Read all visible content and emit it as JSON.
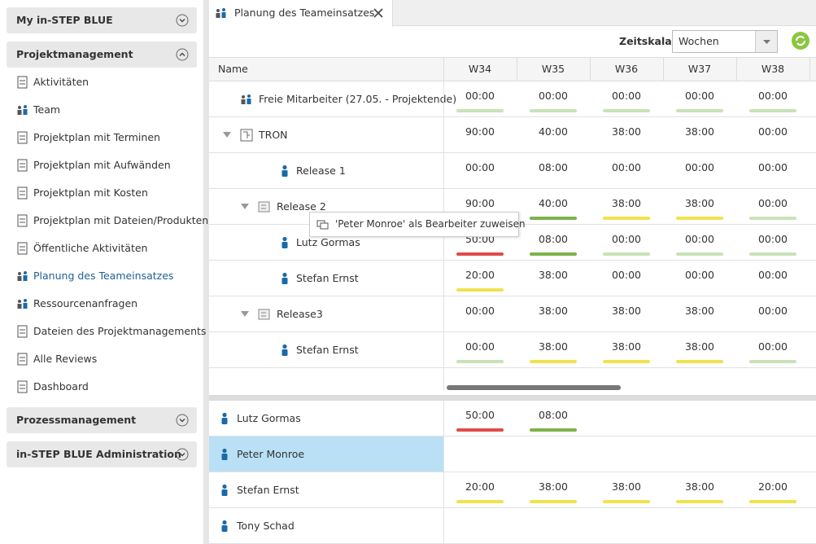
{
  "sidebar": {
    "sections": [
      {
        "title": "My in-STEP BLUE",
        "items": []
      },
      {
        "title": "Projektmanagement",
        "items": [
          "Aktivitäten",
          "Team",
          "Projektplan mit Terminen",
          "Projektplan mit Aufwänden",
          "Projektplan mit Kosten",
          "Projektplan mit Dateien/Produkten",
          "Öffentliche Aktivitäten",
          "Planung des Teameinsatzes",
          "Ressourcenanfragen",
          "Dateien des Projektmanagements",
          "Alle Reviews",
          "Dashboard"
        ]
      },
      {
        "title": "Prozessmanagement",
        "items": []
      },
      {
        "title": "in-STEP BLUE Administration",
        "items": []
      }
    ]
  },
  "tab": {
    "title": "Planung des Teameinsatzes"
  },
  "toolbar": {
    "label": "Zeitskala",
    "select": "Wochen"
  },
  "plan": {
    "columns": {
      "name": "Name",
      "weeks": [
        "W34",
        "W35",
        "W36",
        "W37",
        "W38"
      ]
    },
    "rows": [
      {
        "name": "Freie Mitarbeiter (27.05. - Projektende)",
        "cells": [
          {
            "text": "00:00",
            "bar": "#c8e2b6"
          },
          {
            "text": "00:00",
            "bar": "#c8e2b6"
          },
          {
            "text": "00:00",
            "bar": "#c8e2b6"
          },
          {
            "text": "00:00",
            "bar": "#c8e2b6"
          },
          {
            "text": "00:00",
            "bar": "#c8e2b6"
          }
        ],
        "children": []
      },
      {
        "name": "TRON",
        "cells": [
          {
            "text": "90:00"
          },
          {
            "text": "40:00"
          },
          {
            "text": "38:00"
          },
          {
            "text": "38:00"
          },
          {
            "text": "00:00"
          }
        ],
        "children": [
          {
            "name": "Release 1",
            "cells": [
              {
                "text": "00:00"
              },
              {
                "text": "08:00"
              },
              {
                "text": "00:00"
              },
              {
                "text": "00:00"
              },
              {
                "text": "00:00"
              }
            ],
            "children": []
          },
          {
            "name": "Release 2",
            "cells": [
              {
                "text": "90:00",
                "bar": "#f0e24e"
              },
              {
                "text": "40:00",
                "bar": "#7db24a"
              },
              {
                "text": "38:00",
                "bar": "#f0e24e"
              },
              {
                "text": "38:00",
                "bar": "#f0e24e"
              },
              {
                "text": "00:00",
                "bar": "#c8e2b6"
              }
            ],
            "children": [
              {
                "name": "Lutz Gormas",
                "cells": [
                  {
                    "text": "50:00",
                    "bar": "#e04b4b"
                  },
                  {
                    "text": "08:00",
                    "bar": "#7db24a"
                  },
                  {
                    "text": "00:00",
                    "bar": "#c8e2b6"
                  },
                  {
                    "text": "00:00",
                    "bar": "#c8e2b6"
                  },
                  {
                    "text": "00:00",
                    "bar": "#c8e2b6"
                  }
                ],
                "children": []
              },
              {
                "name": "Stefan Ernst",
                "cells": [
                  {
                    "text": "20:00",
                    "bar": "#f0e24e"
                  },
                  {
                    "text": "38:00"
                  },
                  {
                    "text": "00:00"
                  },
                  {
                    "text": "00:00"
                  },
                  {
                    "text": "00:00"
                  }
                ],
                "children": []
              }
            ]
          },
          {
            "name": "Release3",
            "cells": [
              {
                "text": "00:00"
              },
              {
                "text": "38:00"
              },
              {
                "text": "38:00"
              },
              {
                "text": "38:00"
              },
              {
                "text": "00:00"
              }
            ],
            "children": [
              {
                "name": "Stefan Ernst",
                "cells": [
                  {
                    "text": "00:00",
                    "bar": "#c8e2b6"
                  },
                  {
                    "text": "38:00",
                    "bar": "#f0e24e"
                  },
                  {
                    "text": "38:00",
                    "bar": "#f0e24e"
                  },
                  {
                    "text": "38:00",
                    "bar": "#f0e24e"
                  },
                  {
                    "text": "00:00",
                    "bar": "#c8e2b6"
                  }
                ],
                "children": []
              }
            ]
          }
        ]
      }
    ],
    "tooltip": "'Peter Monroe' als Bearbeiter zuweisen"
  },
  "resources": {
    "rows": [
      {
        "name": "Lutz Gormas",
        "cells": [
          {
            "text": "50:00",
            "bar": "#e04b4b"
          },
          {
            "text": "08:00",
            "bar": "#7db24a"
          }
        ]
      },
      {
        "name": "Peter Monroe",
        "cells": [],
        "selected": true
      },
      {
        "name": "Stefan Ernst",
        "cells": [
          {
            "text": "20:00",
            "bar": "#f0e24e"
          },
          {
            "text": "38:00",
            "bar": "#f0e24e"
          },
          {
            "text": "38:00",
            "bar": "#f0e24e"
          },
          {
            "text": "38:00",
            "bar": "#f0e24e"
          },
          {
            "text": "20:00",
            "bar": "#f0e24e"
          }
        ]
      },
      {
        "name": "Tony Schad",
        "cells": []
      }
    ]
  }
}
